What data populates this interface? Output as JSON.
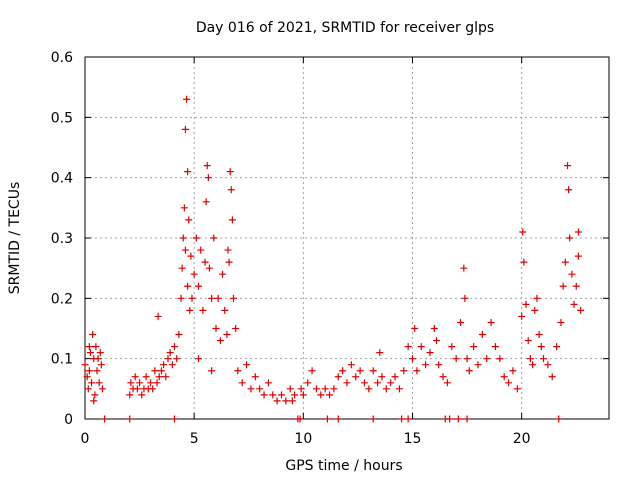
{
  "chart_data": {
    "type": "scatter",
    "title": "Day 016 of 2021, SRMTID for receiver glps",
    "xlabel": "GPS time / hours",
    "ylabel": "SRMTID / TECUs",
    "xlim": [
      0,
      24
    ],
    "ylim": [
      0,
      0.6
    ],
    "x_ticks": [
      0,
      5,
      10,
      15,
      20
    ],
    "y_ticks": [
      0,
      0.1,
      0.2,
      0.3,
      0.4,
      0.5,
      0.6
    ],
    "x_tick_labels": [
      "0",
      "5",
      "10",
      "15",
      "20"
    ],
    "y_tick_labels": [
      "0",
      "0.1",
      "0.2",
      "0.3",
      "0.4",
      "0.5",
      "0.6"
    ],
    "grid": true,
    "marker": "+",
    "color": "#e00000",
    "series": [
      {
        "name": "SRMTID",
        "points": [
          [
            0.0,
            0.09
          ],
          [
            0.1,
            0.07
          ],
          [
            0.15,
            0.05
          ],
          [
            0.2,
            0.08
          ],
          [
            0.25,
            0.11
          ],
          [
            0.3,
            0.06
          ],
          [
            0.35,
            0.14
          ],
          [
            0.4,
            0.1
          ],
          [
            0.45,
            0.04
          ],
          [
            0.5,
            0.12
          ],
          [
            0.55,
            0.08
          ],
          [
            0.6,
            0.1
          ],
          [
            0.65,
            0.06
          ],
          [
            0.7,
            0.11
          ],
          [
            0.75,
            0.09
          ],
          [
            0.8,
            0.05
          ],
          [
            0.4,
            0.03
          ],
          [
            0.2,
            0.12
          ],
          [
            2.05,
            0.04
          ],
          [
            2.1,
            0.06
          ],
          [
            2.2,
            0.05
          ],
          [
            2.3,
            0.07
          ],
          [
            2.4,
            0.05
          ],
          [
            2.5,
            0.06
          ],
          [
            2.6,
            0.04
          ],
          [
            2.7,
            0.05
          ],
          [
            2.8,
            0.07
          ],
          [
            2.9,
            0.05
          ],
          [
            3.0,
            0.06
          ],
          [
            3.1,
            0.05
          ],
          [
            3.2,
            0.08
          ],
          [
            3.3,
            0.06
          ],
          [
            3.35,
            0.17
          ],
          [
            3.4,
            0.07
          ],
          [
            3.5,
            0.08
          ],
          [
            3.6,
            0.09
          ],
          [
            3.7,
            0.07
          ],
          [
            3.8,
            0.1
          ],
          [
            3.9,
            0.11
          ],
          [
            4.0,
            0.09
          ],
          [
            4.1,
            0.12
          ],
          [
            4.2,
            0.1
          ],
          [
            4.3,
            0.14
          ],
          [
            4.4,
            0.2
          ],
          [
            4.45,
            0.25
          ],
          [
            4.5,
            0.3
          ],
          [
            4.55,
            0.35
          ],
          [
            4.6,
            0.28
          ],
          [
            4.6,
            0.48
          ],
          [
            4.65,
            0.53
          ],
          [
            4.7,
            0.41
          ],
          [
            4.7,
            0.22
          ],
          [
            4.75,
            0.33
          ],
          [
            4.8,
            0.18
          ],
          [
            4.85,
            0.27
          ],
          [
            4.9,
            0.2
          ],
          [
            5.0,
            0.24
          ],
          [
            5.1,
            0.3
          ],
          [
            5.2,
            0.22
          ],
          [
            5.3,
            0.28
          ],
          [
            5.4,
            0.18
          ],
          [
            5.5,
            0.26
          ],
          [
            5.55,
            0.36
          ],
          [
            5.6,
            0.42
          ],
          [
            5.65,
            0.4
          ],
          [
            5.7,
            0.25
          ],
          [
            5.8,
            0.2
          ],
          [
            5.9,
            0.3
          ],
          [
            6.0,
            0.15
          ],
          [
            6.1,
            0.2
          ],
          [
            6.2,
            0.13
          ],
          [
            6.3,
            0.24
          ],
          [
            6.4,
            0.18
          ],
          [
            6.5,
            0.14
          ],
          [
            6.55,
            0.28
          ],
          [
            6.6,
            0.26
          ],
          [
            6.65,
            0.41
          ],
          [
            6.7,
            0.38
          ],
          [
            6.75,
            0.33
          ],
          [
            6.8,
            0.2
          ],
          [
            6.9,
            0.15
          ],
          [
            5.2,
            0.1
          ],
          [
            5.8,
            0.08
          ],
          [
            7.0,
            0.08
          ],
          [
            7.2,
            0.06
          ],
          [
            7.4,
            0.09
          ],
          [
            7.6,
            0.05
          ],
          [
            7.8,
            0.07
          ],
          [
            8.0,
            0.05
          ],
          [
            8.2,
            0.04
          ],
          [
            8.4,
            0.06
          ],
          [
            8.6,
            0.04
          ],
          [
            8.8,
            0.03
          ],
          [
            9.0,
            0.04
          ],
          [
            9.2,
            0.03
          ],
          [
            9.4,
            0.05
          ],
          [
            9.5,
            0.03
          ],
          [
            9.6,
            0.04
          ],
          [
            9.9,
            0.05
          ],
          [
            10.0,
            0.04
          ],
          [
            10.2,
            0.06
          ],
          [
            10.4,
            0.08
          ],
          [
            10.6,
            0.05
          ],
          [
            10.8,
            0.04
          ],
          [
            11.0,
            0.05
          ],
          [
            11.2,
            0.04
          ],
          [
            11.4,
            0.05
          ],
          [
            11.6,
            0.07
          ],
          [
            11.8,
            0.08
          ],
          [
            12.0,
            0.06
          ],
          [
            12.2,
            0.09
          ],
          [
            12.4,
            0.07
          ],
          [
            12.6,
            0.08
          ],
          [
            12.8,
            0.06
          ],
          [
            13.0,
            0.05
          ],
          [
            13.2,
            0.08
          ],
          [
            13.4,
            0.06
          ],
          [
            13.5,
            0.11
          ],
          [
            13.6,
            0.07
          ],
          [
            13.8,
            0.05
          ],
          [
            14.0,
            0.06
          ],
          [
            14.2,
            0.07
          ],
          [
            14.4,
            0.05
          ],
          [
            14.6,
            0.08
          ],
          [
            14.8,
            0.12
          ],
          [
            15.0,
            0.1
          ],
          [
            15.1,
            0.15
          ],
          [
            15.2,
            0.08
          ],
          [
            15.4,
            0.12
          ],
          [
            15.6,
            0.09
          ],
          [
            15.8,
            0.11
          ],
          [
            16.0,
            0.15
          ],
          [
            16.1,
            0.13
          ],
          [
            16.2,
            0.09
          ],
          [
            16.4,
            0.07
          ],
          [
            16.6,
            0.06
          ],
          [
            16.8,
            0.12
          ],
          [
            17.0,
            0.1
          ],
          [
            17.2,
            0.16
          ],
          [
            17.35,
            0.25
          ],
          [
            17.4,
            0.2
          ],
          [
            17.5,
            0.1
          ],
          [
            17.6,
            0.08
          ],
          [
            17.8,
            0.12
          ],
          [
            18.0,
            0.09
          ],
          [
            18.2,
            0.14
          ],
          [
            18.4,
            0.1
          ],
          [
            18.6,
            0.16
          ],
          [
            18.8,
            0.12
          ],
          [
            19.0,
            0.1
          ],
          [
            19.2,
            0.07
          ],
          [
            19.4,
            0.06
          ],
          [
            19.6,
            0.08
          ],
          [
            19.8,
            0.05
          ],
          [
            20.0,
            0.17
          ],
          [
            20.05,
            0.31
          ],
          [
            20.1,
            0.26
          ],
          [
            20.2,
            0.19
          ],
          [
            20.3,
            0.13
          ],
          [
            20.4,
            0.1
          ],
          [
            20.5,
            0.09
          ],
          [
            20.6,
            0.18
          ],
          [
            20.7,
            0.2
          ],
          [
            20.8,
            0.14
          ],
          [
            20.9,
            0.12
          ],
          [
            21.0,
            0.1
          ],
          [
            21.2,
            0.09
          ],
          [
            21.4,
            0.07
          ],
          [
            21.6,
            0.12
          ],
          [
            21.8,
            0.16
          ],
          [
            21.9,
            0.22
          ],
          [
            22.0,
            0.26
          ],
          [
            22.1,
            0.42
          ],
          [
            22.15,
            0.38
          ],
          [
            22.2,
            0.3
          ],
          [
            22.3,
            0.24
          ],
          [
            22.4,
            0.19
          ],
          [
            22.5,
            0.22
          ],
          [
            22.6,
            0.27
          ],
          [
            22.7,
            0.18
          ],
          [
            22.6,
            0.31
          ],
          [
            0.9,
            0.0
          ],
          [
            2.05,
            0.0
          ],
          [
            4.1,
            0.0
          ],
          [
            9.75,
            0.0
          ],
          [
            9.85,
            0.0
          ],
          [
            11.1,
            0.0
          ],
          [
            11.6,
            0.0
          ],
          [
            13.2,
            0.0
          ],
          [
            14.5,
            0.0
          ],
          [
            14.8,
            0.0
          ],
          [
            16.5,
            0.0
          ],
          [
            16.7,
            0.0
          ],
          [
            17.1,
            0.0
          ],
          [
            17.5,
            0.0
          ],
          [
            21.7,
            0.0
          ]
        ]
      }
    ]
  }
}
